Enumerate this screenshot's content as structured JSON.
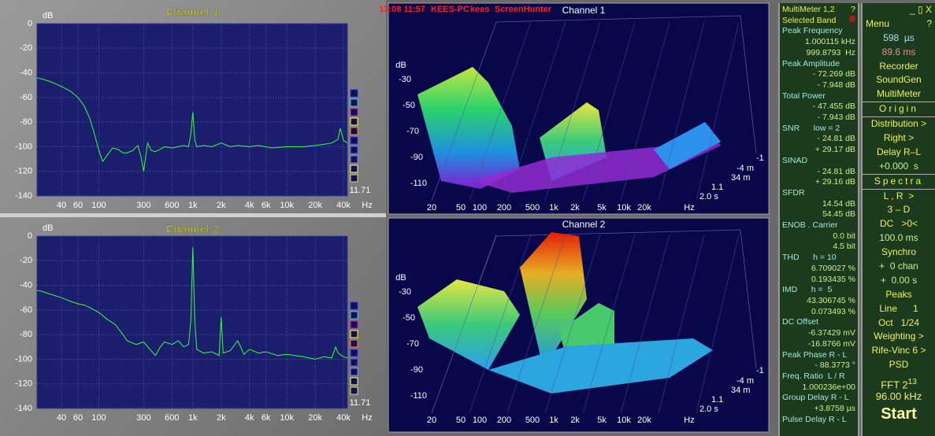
{
  "header": {
    "clock": "13:08 11:57",
    "host": "KEES-PC",
    "user": "kees",
    "app": "ScreenHunter"
  },
  "chart_data": [
    {
      "type": "line",
      "title": "Channel 1",
      "y_label": "dB",
      "x_label": "Hz",
      "annotation": "11.71",
      "xlog": true,
      "grid": true,
      "color": "#3cff3c",
      "xlim": [
        22,
        44000
      ],
      "ylim": [
        -140,
        0
      ],
      "xticks": [
        40,
        60,
        100,
        300,
        600,
        {
          "value": 1000,
          "label": "1k"
        },
        {
          "value": 2000,
          "label": "2k"
        },
        {
          "value": 4000,
          "label": "4k"
        },
        {
          "value": 6000,
          "label": "6k"
        },
        {
          "value": 10000,
          "label": "10k"
        },
        {
          "value": 20000,
          "label": "20k"
        },
        {
          "value": 40000,
          "label": "40k"
        }
      ],
      "yticks": [
        0,
        -20,
        -40,
        -60,
        -80,
        -100,
        -120,
        -140
      ],
      "x": [
        22,
        25,
        30,
        35,
        40,
        50,
        60,
        70,
        80,
        90,
        100,
        110,
        125,
        140,
        160,
        180,
        200,
        230,
        260,
        280,
        300,
        330,
        360,
        400,
        450,
        500,
        600,
        700,
        800,
        900,
        950,
        1000,
        1050,
        1100,
        1300,
        1600,
        2000,
        2500,
        3000,
        4000,
        5000,
        7000,
        10000,
        15000,
        20000,
        25000,
        30000,
        35000,
        37000,
        40000,
        44000
      ],
      "values": [
        -44,
        -45,
        -47,
        -49,
        -51,
        -55,
        -60,
        -67,
        -77,
        -90,
        -103,
        -112,
        -106,
        -101,
        -102,
        -105,
        -105,
        -103,
        -99,
        -108,
        -120,
        -97,
        -103,
        -104,
        -102,
        -100,
        -101,
        -100,
        -99,
        -100,
        -90,
        -72,
        -95,
        -100,
        -99,
        -100,
        -97,
        -100,
        -99,
        -100,
        -99,
        -101,
        -100,
        -100,
        -99,
        -98,
        -97,
        -94,
        -85,
        -95,
        -97
      ]
    },
    {
      "type": "line",
      "title": "Channel 2",
      "y_label": "dB",
      "x_label": "Hz",
      "annotation": "11.71",
      "xlog": true,
      "grid": true,
      "color": "#3cff3c",
      "xlim": [
        22,
        44000
      ],
      "ylim": [
        -140,
        0
      ],
      "xticks": [
        40,
        60,
        100,
        300,
        600,
        {
          "value": 1000,
          "label": "1k"
        },
        {
          "value": 2000,
          "label": "2k"
        },
        {
          "value": 4000,
          "label": "4k"
        },
        {
          "value": 6000,
          "label": "6k"
        },
        {
          "value": 10000,
          "label": "10k"
        },
        {
          "value": 20000,
          "label": "20k"
        },
        {
          "value": 40000,
          "label": "40k"
        }
      ],
      "yticks": [
        0,
        -20,
        -40,
        -60,
        -80,
        -100,
        -120,
        -140
      ],
      "x": [
        22,
        25,
        30,
        40,
        50,
        60,
        70,
        80,
        100,
        120,
        150,
        180,
        200,
        250,
        300,
        350,
        400,
        450,
        500,
        600,
        700,
        800,
        900,
        950,
        1000,
        1050,
        1100,
        1300,
        1600,
        1900,
        2000,
        2100,
        2500,
        3000,
        3500,
        4000,
        5000,
        6000,
        8000,
        10000,
        15000,
        20000,
        25000,
        30000,
        33000,
        35000,
        40000,
        44000
      ],
      "values": [
        -44,
        -45,
        -47,
        -50,
        -53,
        -55,
        -56,
        -58,
        -62,
        -67,
        -72,
        -80,
        -85,
        -88,
        -86,
        -92,
        -97,
        -90,
        -86,
        -88,
        -85,
        -90,
        -88,
        -70,
        -9,
        -70,
        -92,
        -95,
        -94,
        -97,
        -66,
        -95,
        -93,
        -85,
        -96,
        -92,
        -95,
        -94,
        -97,
        -96,
        -98,
        -100,
        -98,
        -99,
        -90,
        -95,
        -98,
        -99
      ]
    }
  ],
  "waterfall": [
    {
      "title": "Channel 1",
      "y_label": "dB",
      "yticks": [
        -30,
        -50,
        -70,
        -90,
        -110
      ],
      "xticks": [
        20,
        50,
        100,
        200,
        500,
        "1k",
        "2k",
        "5k",
        "10k",
        "20k"
      ],
      "x_label": "Hz",
      "z_labels": [
        "-1",
        "-4 m",
        "34 m",
        "1.1",
        "2.0 s"
      ]
    },
    {
      "title": "Channel 2",
      "y_label": "dB",
      "yticks": [
        -30,
        -50,
        -70,
        -90,
        -110
      ],
      "xticks": [
        20,
        50,
        100,
        200,
        500,
        "1k",
        "2k",
        "5k",
        "10k",
        "20k"
      ],
      "x_label": "Hz",
      "z_labels": [
        "-1",
        "-4 m",
        "34 m",
        "1.1",
        "2.0 s"
      ]
    }
  ],
  "multimeter": {
    "title": "MultiMeter 1,2",
    "help": "?",
    "band": "Selected Band",
    "items": [
      {
        "label": "Peak Frequency",
        "values": [
          "1.000115 kHz",
          "999.8793  Hz"
        ]
      },
      {
        "label": "Peak Amplitude",
        "values": [
          "- 72.269 dB",
          "- 7.948 dB"
        ]
      },
      {
        "label": "Total Power",
        "values": [
          "- 47.455 dB",
          "- 7.943 dB"
        ]
      },
      {
        "label": "SNR      low = 2",
        "values": [
          "- 24.81 dB",
          "+ 29.17 dB"
        ]
      },
      {
        "label": "SINAD",
        "values": [
          "- 24.81 dB",
          "+ 29.16 dB"
        ]
      },
      {
        "label": "SFDR",
        "values": [
          "14.54 dB",
          "54.45 dB"
        ]
      },
      {
        "label": "ENOB . Carrier",
        "values": [
          "0.0 bit",
          "4.5 bit"
        ]
      },
      {
        "label": "THD      h = 10",
        "values": [
          "6.709027 %",
          "0.193435 %"
        ]
      },
      {
        "label": "IMD      h =  5",
        "values": [
          "43.306745 %",
          "0.073493 %"
        ]
      },
      {
        "label": "DC Offset",
        "values": [
          "-6.37429 mV",
          "-16.8766 mV"
        ]
      },
      {
        "label": "Peak Phase R - L",
        "values": [
          "- 88.3773 °"
        ]
      },
      {
        "label": "Freq. Ratio  L / R",
        "values": [
          "1.000236e+00"
        ]
      },
      {
        "label": "Group Delay R - L",
        "values": [
          "+3.8758 µs"
        ]
      },
      {
        "label": "Pulse Delay R - L",
        "values": []
      }
    ]
  },
  "menu": {
    "window_buttons": "_ ▯ X",
    "title": "Menu",
    "help": "?",
    "items": [
      "598  µs",
      "89.6 ms",
      "Recorder",
      "SoundGen",
      "MultiMeter",
      "Origin",
      "Distribution >",
      "Right >",
      "Delay R–L",
      "+0.000  s",
      "Spectra",
      "L , R  >",
      "3 – D",
      "DC   >0<",
      "100.0 ms",
      "Synchro",
      "+  0 chan",
      "+  0.00 s",
      "Peaks",
      "Line      1",
      "Oct   1/24",
      "Weighting >",
      "Rife-Vinc 6 >",
      "PSD"
    ],
    "fft": "FFT 2",
    "fft_exp": "13",
    "rate": "96.00 kHz",
    "start": "Start"
  }
}
